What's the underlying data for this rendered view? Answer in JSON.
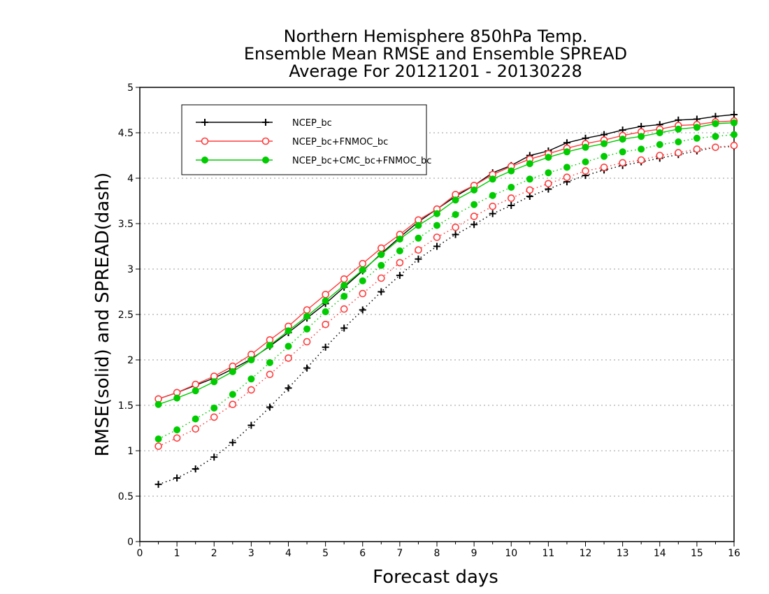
{
  "chart_data": {
    "type": "line",
    "title": [
      "Northern Hemisphere 850hPa Temp.",
      "Ensemble Mean RMSE and Ensemble SPREAD",
      "Average For 20121201 - 20130228"
    ],
    "xlabel": "Forecast days",
    "ylabel": "RMSE(solid) and SPREAD(dash)",
    "xlim": [
      0,
      16
    ],
    "ylim": [
      0,
      5
    ],
    "xticks": [
      "0",
      "1",
      "2",
      "3",
      "4",
      "5",
      "6",
      "7",
      "8",
      "9",
      "10",
      "11",
      "12",
      "13",
      "14",
      "15",
      "16"
    ],
    "yticks": [
      "0",
      "0.5",
      "1",
      "1.5",
      "2",
      "2.5",
      "3",
      "3.5",
      "4",
      "4.5",
      "5"
    ],
    "grid": "horizontal dotted",
    "legend_position": "top-left",
    "x": [
      0.5,
      1,
      1.5,
      2,
      2.5,
      3,
      3.5,
      4,
      4.5,
      5,
      5.5,
      6,
      6.5,
      7,
      7.5,
      8,
      8.5,
      9,
      9.5,
      10,
      10.5,
      11,
      11.5,
      12,
      12.5,
      13,
      13.5,
      14,
      14.5,
      15,
      15.5,
      16
    ],
    "series": [
      {
        "name": "NCEP_bc",
        "color": "#000000",
        "marker": "plus",
        "style": "solid",
        "values": [
          1.57,
          1.64,
          1.72,
          1.8,
          1.9,
          2.01,
          2.15,
          2.3,
          2.46,
          2.62,
          2.8,
          2.98,
          3.17,
          3.35,
          3.52,
          3.66,
          3.8,
          3.92,
          4.06,
          4.14,
          4.25,
          4.3,
          4.39,
          4.44,
          4.48,
          4.53,
          4.57,
          4.59,
          4.64,
          4.65,
          4.68,
          4.7
        ]
      },
      {
        "name": "",
        "color": "#000000",
        "marker": "plus",
        "style": "dotted",
        "values": [
          0.63,
          0.7,
          0.8,
          0.93,
          1.09,
          1.28,
          1.48,
          1.69,
          1.91,
          2.14,
          2.35,
          2.55,
          2.75,
          2.93,
          3.11,
          3.25,
          3.38,
          3.49,
          3.61,
          3.7,
          3.8,
          3.88,
          3.96,
          4.03,
          4.09,
          4.14,
          4.18,
          4.22,
          4.26,
          4.3,
          4.34,
          4.35
        ]
      },
      {
        "name": "NCEP_bc+FNMOC_bc",
        "color": "#ff3c3c",
        "marker": "open-circle",
        "style": "solid",
        "values": [
          1.57,
          1.64,
          1.73,
          1.82,
          1.93,
          2.06,
          2.22,
          2.37,
          2.55,
          2.72,
          2.89,
          3.06,
          3.23,
          3.38,
          3.54,
          3.66,
          3.82,
          3.92,
          4.04,
          4.13,
          4.21,
          4.27,
          4.33,
          4.38,
          4.42,
          4.47,
          4.51,
          4.54,
          4.58,
          4.59,
          4.62,
          4.63
        ]
      },
      {
        "name": "",
        "color": "#ff3c3c",
        "marker": "open-circle",
        "style": "dotted",
        "values": [
          1.05,
          1.14,
          1.24,
          1.37,
          1.51,
          1.67,
          1.84,
          2.02,
          2.2,
          2.39,
          2.56,
          2.73,
          2.9,
          3.07,
          3.21,
          3.35,
          3.46,
          3.58,
          3.69,
          3.78,
          3.87,
          3.94,
          4.01,
          4.08,
          4.12,
          4.17,
          4.2,
          4.25,
          4.28,
          4.32,
          4.34,
          4.36
        ]
      },
      {
        "name": "NCEP_bc+CMC_bc+FNMOC_bc",
        "color": "#00cc00",
        "marker": "filled-circle",
        "style": "solid",
        "values": [
          1.51,
          1.58,
          1.66,
          1.76,
          1.87,
          2.0,
          2.16,
          2.32,
          2.48,
          2.65,
          2.82,
          2.99,
          3.16,
          3.33,
          3.48,
          3.61,
          3.76,
          3.87,
          3.99,
          4.08,
          4.16,
          4.23,
          4.29,
          4.34,
          4.38,
          4.43,
          4.46,
          4.5,
          4.54,
          4.56,
          4.6,
          4.61
        ]
      },
      {
        "name": "",
        "color": "#00cc00",
        "marker": "filled-circle",
        "style": "dotted",
        "values": [
          1.13,
          1.23,
          1.35,
          1.47,
          1.62,
          1.79,
          1.97,
          2.15,
          2.34,
          2.53,
          2.7,
          2.87,
          3.04,
          3.2,
          3.34,
          3.48,
          3.6,
          3.71,
          3.81,
          3.9,
          3.99,
          4.06,
          4.12,
          4.18,
          4.24,
          4.29,
          4.32,
          4.37,
          4.4,
          4.44,
          4.46,
          4.48
        ]
      }
    ]
  }
}
